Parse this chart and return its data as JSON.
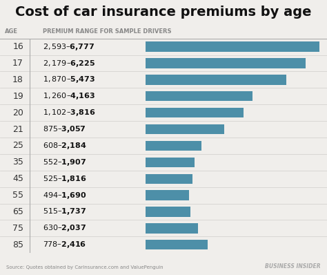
{
  "title": "Cost of car insurance premiums by age",
  "col_header_age": "AGE",
  "col_header_premium": "PREMIUM RANGE FOR SAMPLE DRIVERS",
  "source_text": "Source: Quotes obtained by CarInsurance.com and ValuePenguin",
  "brand_text": "BUSINESS INSIDER",
  "background_color": "#f0eeeb",
  "bar_color": "#4d8fa8",
  "header_line_color": "#aaaaaa",
  "row_line_color": "#d5d3d0",
  "ages": [
    "16",
    "17",
    "18",
    "19",
    "20",
    "21",
    "25",
    "35",
    "45",
    "55",
    "65",
    "75",
    "85"
  ],
  "labels": [
    "$2,593–$6,777",
    "$2,179–$6,225",
    "$1,870–$5,473",
    "$1,260–$4,163",
    "$1,102–$3,816",
    "$875–$3,057",
    "$608–$2,184",
    "$552–$1,907",
    "$525–$1,816",
    "$494–$1,690",
    "$515–$1,737",
    "$630–$2,037",
    "$778–$2,416"
  ],
  "max_values": [
    6777,
    6225,
    5473,
    4163,
    3816,
    3057,
    2184,
    1907,
    1816,
    1690,
    1737,
    2037,
    2416
  ],
  "xlim_max": 7000,
  "title_fontsize": 14,
  "age_fontsize": 9,
  "label_fontsize": 8,
  "header_fontsize": 6,
  "source_fontsize": 5,
  "brand_fontsize": 5.5
}
